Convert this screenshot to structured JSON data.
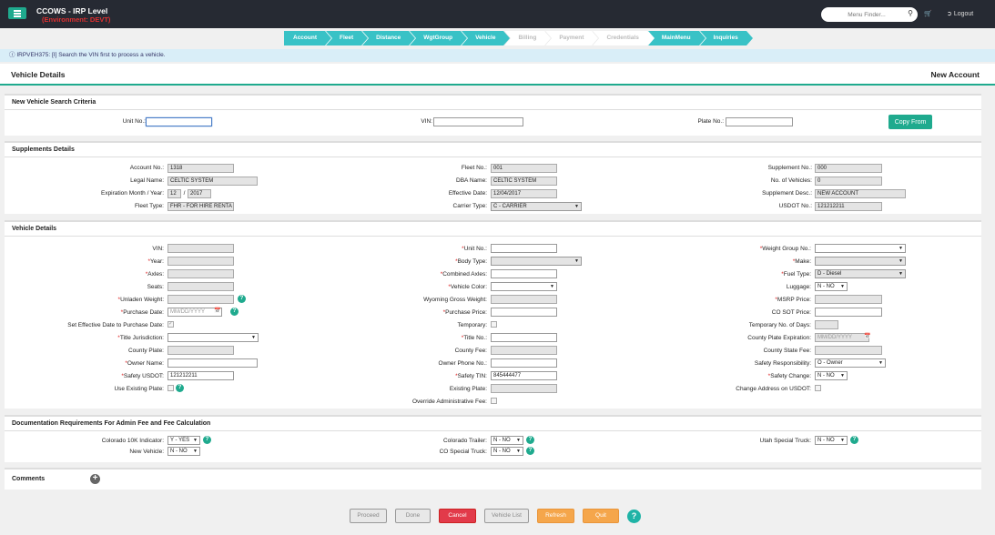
{
  "header": {
    "app_title": "CCOWS - IRP Level",
    "environment": "(Environment: DEVT)",
    "search_placeholder": "Menu Finder...",
    "logout_label": "Logout"
  },
  "wizard": {
    "steps": [
      {
        "label": "Account",
        "state": "active"
      },
      {
        "label": "Fleet",
        "state": "active"
      },
      {
        "label": "Distance",
        "state": "active"
      },
      {
        "label": "WgtGroup",
        "state": "active"
      },
      {
        "label": "Vehicle",
        "state": "current"
      },
      {
        "label": "Billing",
        "state": "disabled"
      },
      {
        "label": "Payment",
        "state": "disabled"
      },
      {
        "label": "Credentials",
        "state": "disabled"
      },
      {
        "label": "MainMenu",
        "state": "active"
      },
      {
        "label": "Inquiries",
        "state": "active"
      }
    ]
  },
  "info_message": "IRPVEH375: [I] Search the VIN first to process a vehicle.",
  "page": {
    "title": "Vehicle Details",
    "mode": "New Account"
  },
  "search": {
    "title": "New Vehicle Search Criteria",
    "unit_label": "Unit No.:",
    "vin_label": "VIN:",
    "plate_label": "Plate No.:",
    "copy_button": "Copy From"
  },
  "supplements": {
    "title": "Supplements Details",
    "account_no_label": "Account No.:",
    "account_no": "1318",
    "legal_name_label": "Legal Name:",
    "legal_name": "CELTIC SYSTEM",
    "expiration_label": "Expiration Month / Year:",
    "exp_month": "12",
    "exp_year": "2017",
    "fleet_type_label": "Fleet Type:",
    "fleet_type": "FHR - FOR HIRE RENTA",
    "fleet_no_label": "Fleet No.:",
    "fleet_no": "001",
    "dba_label": "DBA Name:",
    "dba": "CELTIC SYSTEM",
    "effective_date_label": "Effective Date:",
    "effective_date": "12/04/2017",
    "carrier_type_label": "Carrier Type:",
    "carrier_type": "C - CARRIER",
    "supplement_no_label": "Supplement No.:",
    "supplement_no": "000",
    "num_vehicles_label": "No. of Vehicles:",
    "num_vehicles": "0",
    "supplement_desc_label": "Supplement Desc.:",
    "supplement_desc": "NEW ACCOUNT",
    "usdot_label": "USDOT No.:",
    "usdot": "121212211"
  },
  "vehicle": {
    "title": "Vehicle Details",
    "vin_label": "VIN:",
    "year_label": "Year:",
    "axles_label": "Axles:",
    "seats_label": "Seats:",
    "unladen_label": "Unladen Weight:",
    "purchase_date_label": "Purchase Date:",
    "purchase_date_placeholder": "MM/DD/YYYY",
    "set_eff_label": "Set Effective Date to Purchase Date:",
    "title_juris_label": "Title Jurisdiction:",
    "county_plate_label": "County Plate:",
    "owner_name_label": "Owner Name:",
    "safety_usdot_label": "Safety USDOT:",
    "safety_usdot": "121212211",
    "use_existing_label": "Use Existing Plate:",
    "unit_no_label": "Unit No.:",
    "body_type_label": "Body Type:",
    "combined_axles_label": "Combined Axles:",
    "vehicle_color_label": "Vehicle Color:",
    "wyoming_label": "Wyoming Gross Weight:",
    "purchase_price_label": "Purchase Price:",
    "temporary_label": "Temporary:",
    "title_no_label": "Title No.:",
    "county_fee_label": "County Fee:",
    "owner_phone_label": "Owner Phone No.:",
    "safety_tin_label": "Safety TIN:",
    "safety_tin": "845444477",
    "existing_plate_label": "Existing Plate:",
    "override_fee_label": "Override Administrative Fee:",
    "weight_group_label": "Weight Group No.:",
    "make_label": "Make:",
    "fuel_type_label": "Fuel Type:",
    "fuel_type": "D - Diesel",
    "luggage_label": "Luggage:",
    "luggage": "N - NO",
    "msrp_label": "MSRP Price:",
    "co_sot_label": "CO SOT Price:",
    "temp_days_label": "Temporary No. of Days:",
    "county_plate_exp_label": "County Plate Expiration:",
    "county_plate_exp_placeholder": "MM/DD/YYYY",
    "county_state_fee_label": "County State Fee:",
    "safety_resp_label": "Safety Responsibility:",
    "safety_resp": "O - Owner",
    "safety_change_label": "Safety Change:",
    "safety_change": "N - NO",
    "change_address_label": "Change Address on USDOT:"
  },
  "docs": {
    "title": "Documentation Requirements For Admin Fee and Fee Calculation",
    "co10k_label": "Colorado 10K Indicator:",
    "co10k": "Y - YES",
    "new_vehicle_label": "New Vehicle:",
    "new_vehicle": "N - NO",
    "co_trailer_label": "Colorado Trailer:",
    "co_trailer": "N - NO",
    "co_special_label": "CO Special Truck:",
    "co_special": "N - NO",
    "utah_label": "Utah Special Truck:",
    "utah": "N - NO"
  },
  "comments": {
    "title": "Comments"
  },
  "actions": {
    "proceed": "Proceed",
    "done": "Done",
    "cancel": "Cancel",
    "vehicle_list": "Vehicle List",
    "refresh": "Refresh",
    "quit": "Quit"
  },
  "colors": {
    "accent": "#1faa8e",
    "wizard": "#39c2c6",
    "danger": "#e23a4a",
    "warning": "#f5a64b"
  }
}
